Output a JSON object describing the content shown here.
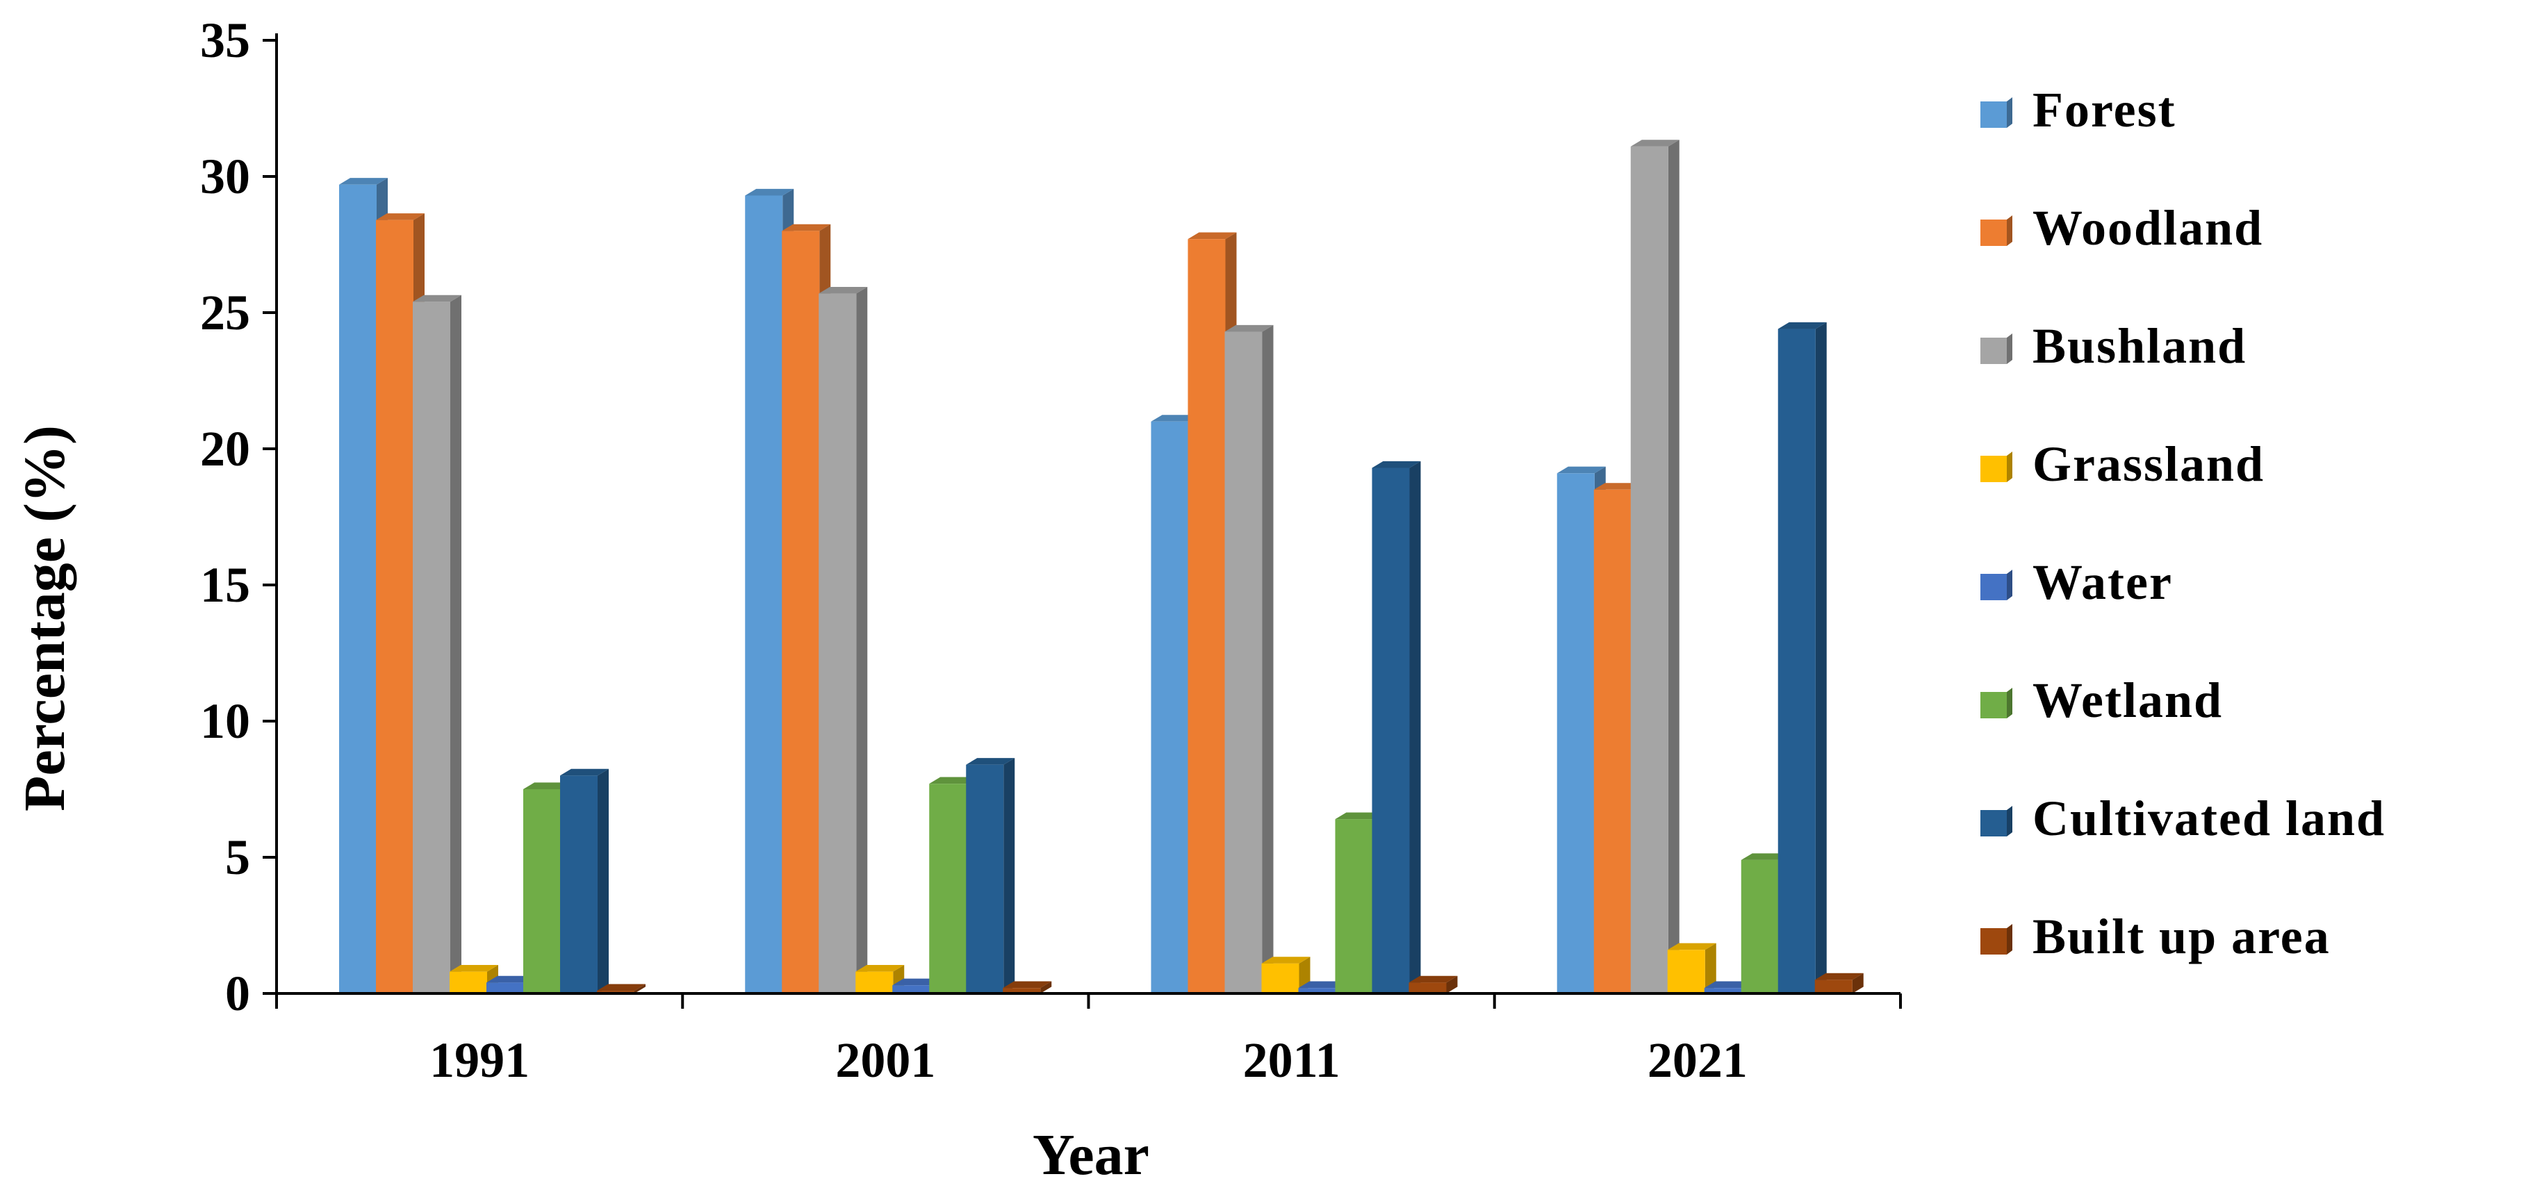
{
  "chart_data": {
    "type": "bar",
    "title": "",
    "xlabel": "Year",
    "ylabel": "Percentage (%)",
    "ylim": [
      0,
      35
    ],
    "yticks": [
      "0",
      "5",
      "10",
      "15",
      "20",
      "25",
      "30",
      "35"
    ],
    "grid": false,
    "legend_position": "right",
    "categories": [
      "1991",
      "2001",
      "2011",
      "2021"
    ],
    "series": [
      {
        "name": "Forest",
        "color": "#5B9BD5",
        "values": [
          29.7,
          29.3,
          21.0,
          19.1
        ]
      },
      {
        "name": "Woodland",
        "color": "#ED7D31",
        "values": [
          28.4,
          28.0,
          27.7,
          18.5
        ]
      },
      {
        "name": "Bushland",
        "color": "#A5A5A5",
        "values": [
          25.4,
          25.7,
          24.3,
          31.1
        ]
      },
      {
        "name": "Grassland",
        "color": "#FFC000",
        "values": [
          0.8,
          0.8,
          1.1,
          1.6
        ]
      },
      {
        "name": "Water",
        "color": "#4472C4",
        "values": [
          0.4,
          0.3,
          0.2,
          0.2
        ]
      },
      {
        "name": "Wetland",
        "color": "#70AD47",
        "values": [
          7.5,
          7.7,
          6.4,
          4.9
        ]
      },
      {
        "name": "Cultivated land",
        "color": "#255E91",
        "values": [
          8.0,
          8.4,
          19.3,
          24.4
        ]
      },
      {
        "name": "Built up area",
        "color": "#9E480E",
        "values": [
          0.1,
          0.2,
          0.4,
          0.5
        ]
      }
    ]
  }
}
